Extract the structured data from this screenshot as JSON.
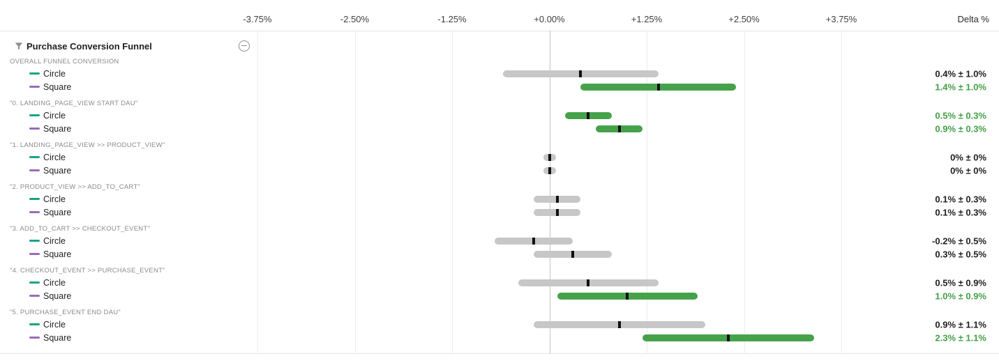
{
  "axis": {
    "delta_label": "Delta %",
    "ticks": [
      {
        "label": "-3.75%",
        "value": -3.75
      },
      {
        "label": "-2.50%",
        "value": -2.5
      },
      {
        "label": "-1.25%",
        "value": -1.25
      },
      {
        "label": "+0.00%",
        "value": 0
      },
      {
        "label": "+1.25%",
        "value": 1.25
      },
      {
        "label": "+2.50%",
        "value": 2.5
      },
      {
        "label": "+3.75%",
        "value": 3.75
      }
    ]
  },
  "panel": {
    "title": "Purchase Conversion Funnel",
    "filter_icon": "funnel-filter-icon",
    "collapse_icon": "collapse-minus-icon"
  },
  "legend": {
    "circle_color": "#19a384",
    "square_color": "#9b6bb5"
  },
  "colors": {
    "bar_neutral": "#c7c7c7",
    "bar_significant": "#46a24a",
    "text_significant": "#43a047",
    "text_neutral": "#1f1f1f",
    "marker": "#111111",
    "zero_line": "#c4c4c4",
    "gridline": "#ececec"
  },
  "chart_data": {
    "type": "confidence-interval-bars",
    "xlabel": "Delta %",
    "x_ticks_percent": [
      -3.75,
      -2.5,
      -1.25,
      0,
      1.25,
      2.5,
      3.75
    ],
    "grid": true,
    "sections": [
      {
        "label": "OVERALL FUNNEL CONVERSION",
        "rows": [
          {
            "variant": "Circle",
            "delta_pct": 0.4,
            "moe_pct": 1.0,
            "display": "0.4% ± 1.0%",
            "significant": false
          },
          {
            "variant": "Square",
            "delta_pct": 1.4,
            "moe_pct": 1.0,
            "display": "1.4% ± 1.0%",
            "significant": true
          }
        ]
      },
      {
        "label": "\"0. LANDING_PAGE_VIEW START DAU\"",
        "rows": [
          {
            "variant": "Circle",
            "delta_pct": 0.5,
            "moe_pct": 0.3,
            "display": "0.5% ± 0.3%",
            "significant": true
          },
          {
            "variant": "Square",
            "delta_pct": 0.9,
            "moe_pct": 0.3,
            "display": "0.9% ± 0.3%",
            "significant": true
          }
        ]
      },
      {
        "label": "\"1. LANDING_PAGE_VIEW >> PRODUCT_VIEW\"",
        "rows": [
          {
            "variant": "Circle",
            "delta_pct": 0,
            "moe_pct": 0,
            "display": "0% ± 0%",
            "significant": false
          },
          {
            "variant": "Square",
            "delta_pct": 0,
            "moe_pct": 0,
            "display": "0% ± 0%",
            "significant": false
          }
        ]
      },
      {
        "label": "\"2. PRODUCT_VIEW >> ADD_TO_CART\"",
        "rows": [
          {
            "variant": "Circle",
            "delta_pct": 0.1,
            "moe_pct": 0.3,
            "display": "0.1% ± 0.3%",
            "significant": false
          },
          {
            "variant": "Square",
            "delta_pct": 0.1,
            "moe_pct": 0.3,
            "display": "0.1% ± 0.3%",
            "significant": false
          }
        ]
      },
      {
        "label": "\"3. ADD_TO_CART >> CHECKOUT_EVENT\"",
        "rows": [
          {
            "variant": "Circle",
            "delta_pct": -0.2,
            "moe_pct": 0.5,
            "display": "-0.2% ± 0.5%",
            "significant": false
          },
          {
            "variant": "Square",
            "delta_pct": 0.3,
            "moe_pct": 0.5,
            "display": "0.3% ± 0.5%",
            "significant": false
          }
        ]
      },
      {
        "label": "\"4. CHECKOUT_EVENT >> PURCHASE_EVENT\"",
        "rows": [
          {
            "variant": "Circle",
            "delta_pct": 0.5,
            "moe_pct": 0.9,
            "display": "0.5% ± 0.9%",
            "significant": false
          },
          {
            "variant": "Square",
            "delta_pct": 1.0,
            "moe_pct": 0.9,
            "display": "1.0% ± 0.9%",
            "significant": true
          }
        ]
      },
      {
        "label": "\"5. PURCHASE_EVENT END DAU\"",
        "rows": [
          {
            "variant": "Circle",
            "delta_pct": 0.9,
            "moe_pct": 1.1,
            "display": "0.9% ± 1.1%",
            "significant": false
          },
          {
            "variant": "Square",
            "delta_pct": 2.3,
            "moe_pct": 1.1,
            "display": "2.3% ± 1.1%",
            "significant": true
          }
        ]
      }
    ]
  }
}
